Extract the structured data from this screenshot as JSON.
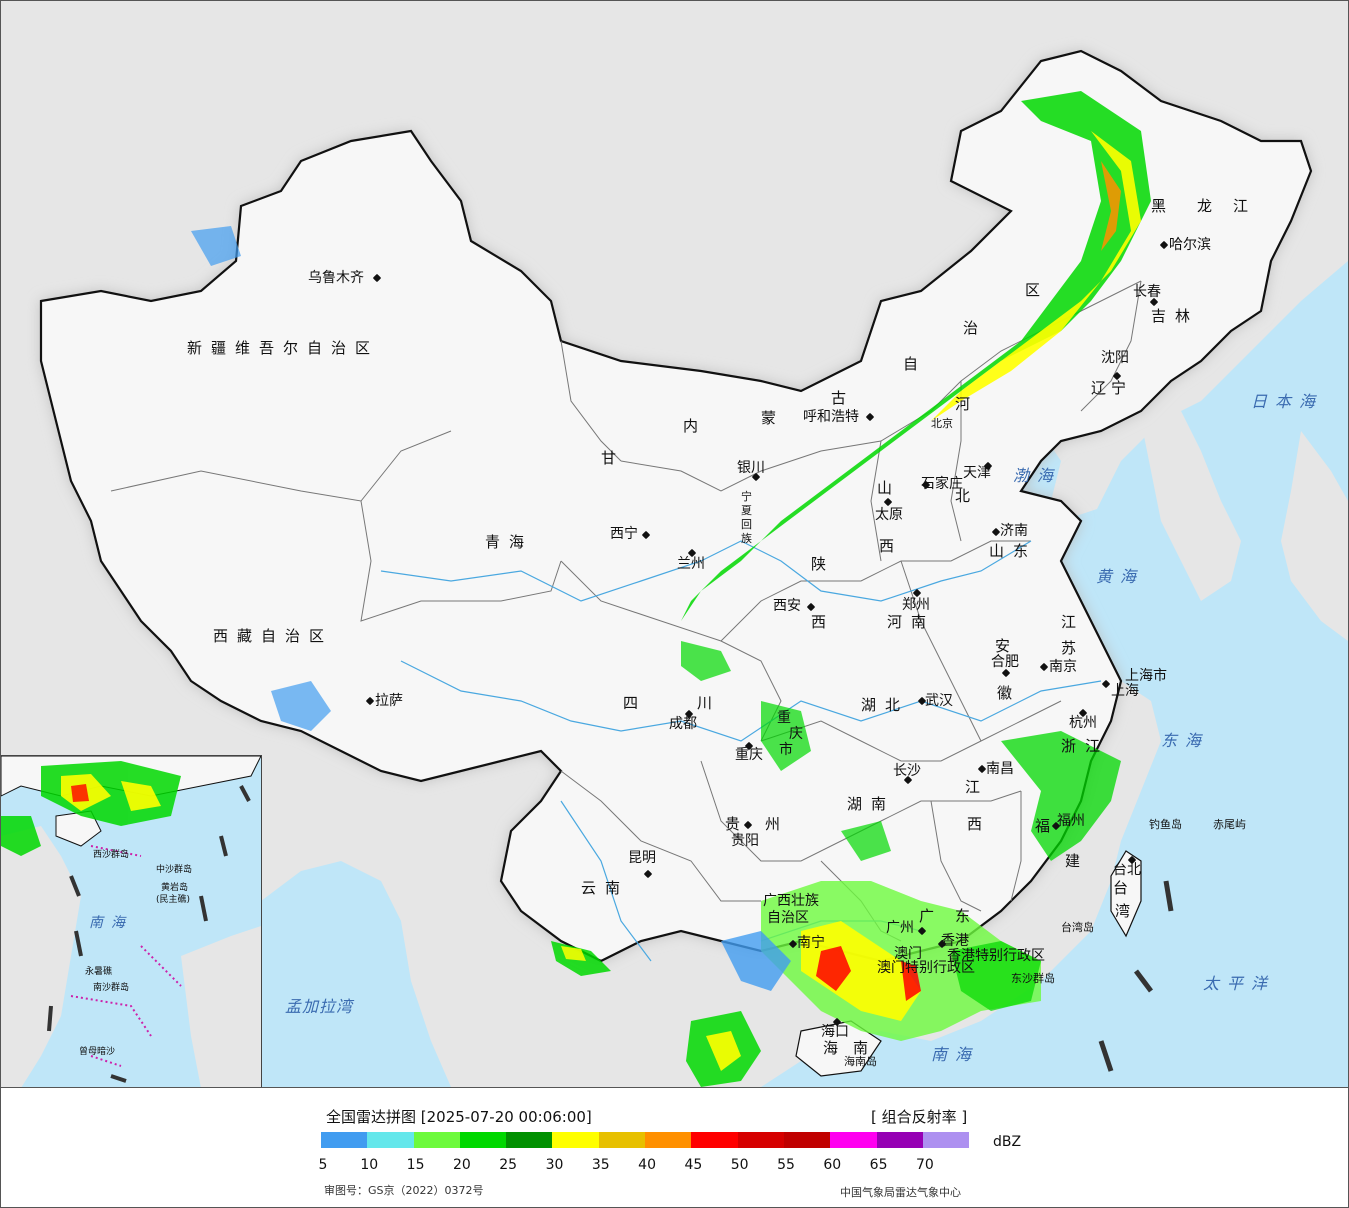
{
  "legend": {
    "title": "全国雷达拼图 [2025-07-20 00:06:00]",
    "product": "[ 组合反射率 ]",
    "unit": "dBZ",
    "approval": "审图号：GS京（2022）0372号",
    "organization": "中国气象局雷达气象中心",
    "ticks": [
      "5",
      "10",
      "15",
      "20",
      "25",
      "30",
      "35",
      "40",
      "45",
      "50",
      "55",
      "60",
      "65",
      "70"
    ],
    "colors": [
      "#419cf0",
      "#64e7eb",
      "#6dfa3d",
      "#00d800",
      "#019001",
      "#ffff00",
      "#e7c000",
      "#ff9000",
      "#ff0000",
      "#d60000",
      "#c00000",
      "#ff00f0",
      "#9600b4",
      "#ad90f0"
    ]
  },
  "regions": {
    "xinjiang": "新疆维吾尔自治区",
    "xizang": "西藏自治区",
    "neimenggu": [
      "内",
      "蒙",
      "古",
      "自",
      "治",
      "区"
    ],
    "heilongjiang": [
      "黑",
      "龙",
      "江"
    ],
    "jilin": "吉林",
    "liaoning": [
      "辽",
      "宁"
    ],
    "hebei": [
      "河",
      "北"
    ],
    "shanxi": [
      "山",
      "西"
    ],
    "shandong": "山东",
    "henan": "河南",
    "jiangsu": [
      "江",
      "苏"
    ],
    "anhui": [
      "安",
      "徽"
    ],
    "hubei": "湖北",
    "hunan": "湖南",
    "jiangxi": [
      "江",
      "西"
    ],
    "zhejiang": "浙江",
    "fujian": [
      "福",
      "建"
    ],
    "guangdong": [
      "广",
      "东"
    ],
    "guangxi": [
      "广西壮族",
      "自治区"
    ],
    "yunnan": "云南",
    "guizhou": [
      "贵",
      "州"
    ],
    "sichuan": [
      "四",
      "川"
    ],
    "qinghai": "青海",
    "gansu": "甘",
    "shaanxi": [
      "陕",
      "西"
    ],
    "ningxia": [
      "宁",
      "夏",
      "回",
      "族"
    ],
    "chongqing": [
      "重",
      "庆",
      "市"
    ],
    "shanghai": "上海市",
    "hainan": [
      "海",
      "南"
    ],
    "taiwan": [
      "台",
      "湾"
    ],
    "hongkong": "香港特别行政区",
    "macao": "澳门特别行政区",
    "tianjin": "天津"
  },
  "cities": {
    "wulumuqi": "乌鲁木齐",
    "lasa": "拉萨",
    "xining": "西宁",
    "lanzhou": "兰州",
    "yinchuan": "银川",
    "huhehaote": "呼和浩特",
    "beijing": "北京",
    "tianjin": "天津",
    "shijiazhuang": "石家庄",
    "taiyuan": "太原",
    "jinan": "济南",
    "zhengzhou": "郑州",
    "xian": "西安",
    "chengdu": "成都",
    "chongqing": "重庆",
    "wuhan": "武汉",
    "hefei": "合肥",
    "nanjing": "南京",
    "shanghai": "上海",
    "hangzhou": "杭州",
    "nanchang": "南昌",
    "changsha": "长沙",
    "guiyang": "贵阳",
    "kunming": "昆明",
    "nanning": "南宁",
    "guangzhou": "广州",
    "xianggang": "香港",
    "aomen": "澳门",
    "haikou": "海口",
    "fuzhou": "福州",
    "taibei": "台北",
    "shenyang": "沈阳",
    "changchun": "长春",
    "haerbin": "哈尔滨"
  },
  "seas": {
    "japan": "日本海",
    "bohai": "渤海",
    "yellow": "黄海",
    "east": "东海",
    "pacific": "太平洋",
    "south": "南海",
    "bengal": "孟加拉湾"
  },
  "islands": {
    "diaoyu": "钓鱼岛",
    "chiwei": "赤尾屿",
    "taiwan_island": "台湾岛",
    "hainan_island": "海南岛",
    "dongsha": "东沙群岛"
  },
  "inset": {
    "south_sea": "南海",
    "xisha": "西沙群岛",
    "zhongsha": "中沙群岛",
    "huangyan": "黄岩岛",
    "minzhu": "(民主礁)",
    "nansha": "南沙群岛",
    "yongshu": "永暑礁",
    "zengmu": "曾母暗沙"
  },
  "colors": {
    "sea": "#bfe6f8",
    "foreign": "#e6e6e6",
    "land": "#f7f7f7",
    "border": "#111111"
  }
}
